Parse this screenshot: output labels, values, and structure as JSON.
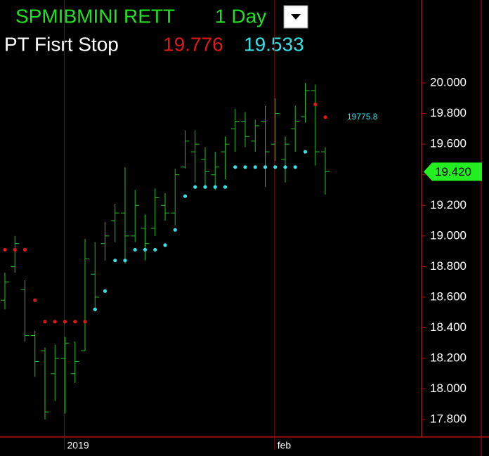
{
  "chart_data": {
    "type": "ohlc",
    "title": "SPMIBMINI RETT",
    "interval": "1 Day",
    "study": {
      "name": "PT Fisrt Stop",
      "readouts": [
        {
          "label": "19.776",
          "color": "#e01818"
        },
        {
          "label": "19.533",
          "color": "#35e0e6"
        }
      ]
    },
    "categories": [
      null,
      null,
      null,
      null,
      null,
      null,
      "2019",
      null,
      null,
      null,
      null,
      null,
      null,
      null,
      null,
      null,
      null,
      null,
      null,
      null,
      null,
      null,
      null,
      null,
      null,
      null,
      null,
      "feb",
      null,
      null,
      null,
      null,
      null
    ],
    "open": [
      18.58,
      18.8,
      18.65,
      18.35,
      18.25,
      18.1,
      18.2,
      18.1,
      18.25,
      18.75,
      18.95,
      19.1,
      19.15,
      19.0,
      19.05,
      19.05,
      19.2,
      19.15,
      19.45,
      19.55,
      19.5,
      19.4,
      19.55,
      19.7,
      19.75,
      19.62,
      19.75,
      19.6,
      19.5,
      19.7,
      19.78,
      19.95,
      19.55
    ],
    "high": [
      18.76,
      19.0,
      18.71,
      18.38,
      18.27,
      18.29,
      18.34,
      18.31,
      18.98,
      18.96,
      19.09,
      19.21,
      19.45,
      19.3,
      19.14,
      19.31,
      19.28,
      19.44,
      19.69,
      19.69,
      19.58,
      19.55,
      19.65,
      19.83,
      19.81,
      19.76,
      19.85,
      19.9,
      19.65,
      19.85,
      20.0,
      19.99,
      19.58
    ],
    "low": [
      18.52,
      18.76,
      18.31,
      18.08,
      17.8,
      17.92,
      17.84,
      18.04,
      18.25,
      18.52,
      18.84,
      18.96,
      18.82,
      18.96,
      18.84,
      19.0,
      19.1,
      19.07,
      19.44,
      19.35,
      19.32,
      19.3,
      19.37,
      19.55,
      19.58,
      19.55,
      19.32,
      19.49,
      19.35,
      19.55,
      19.74,
      19.46,
      19.27
    ],
    "close": [
      18.7,
      18.95,
      18.35,
      18.18,
      17.85,
      18.2,
      18.3,
      18.18,
      18.85,
      18.6,
      19.0,
      19.15,
      19.0,
      19.2,
      18.95,
      19.25,
      19.15,
      19.4,
      19.62,
      19.6,
      19.42,
      19.45,
      19.6,
      19.75,
      19.65,
      19.72,
      19.55,
      19.8,
      19.6,
      19.75,
      19.95,
      19.55,
      19.42
    ],
    "bar_color": "#22c022",
    "series": [
      {
        "color": "#e01818",
        "values": [
          18.91,
          18.91,
          18.91,
          18.58,
          18.44,
          18.44,
          18.44,
          18.44,
          18.44,
          null,
          null,
          null,
          null,
          null,
          null,
          null,
          null,
          null,
          null,
          null,
          null,
          null,
          null,
          null,
          null,
          null,
          null,
          null,
          null,
          null,
          null,
          19.86,
          19.776
        ]
      },
      {
        "color": "#35e0e6",
        "values": [
          null,
          null,
          null,
          null,
          null,
          null,
          null,
          null,
          null,
          18.52,
          18.64,
          18.84,
          18.84,
          18.91,
          18.91,
          18.91,
          18.94,
          19.04,
          19.26,
          19.32,
          19.32,
          19.32,
          19.32,
          19.45,
          19.45,
          19.45,
          19.45,
          19.45,
          19.45,
          19.45,
          19.55,
          null,
          null
        ]
      }
    ],
    "annotation": "19775.8",
    "last": {
      "value": 19.42,
      "label": "19.420"
    },
    "ylim": [
      17.686,
      20.542
    ],
    "yticks": [
      {
        "value": 17.8,
        "label": "17.800"
      },
      {
        "value": 18.0,
        "label": "18.000"
      },
      {
        "value": 18.2,
        "label": "18.200"
      },
      {
        "value": 18.4,
        "label": "18.400"
      },
      {
        "value": 18.6,
        "label": "18.600"
      },
      {
        "value": 18.8,
        "label": "18.800"
      },
      {
        "value": 19.0,
        "label": "19.000"
      },
      {
        "value": 19.2,
        "label": "19.200"
      },
      {
        "value": 19.4,
        "label": "19.400"
      },
      {
        "value": 19.6,
        "label": "19.600"
      },
      {
        "value": 19.8,
        "label": "19.800"
      },
      {
        "value": 20.0,
        "label": "20.000"
      }
    ]
  }
}
